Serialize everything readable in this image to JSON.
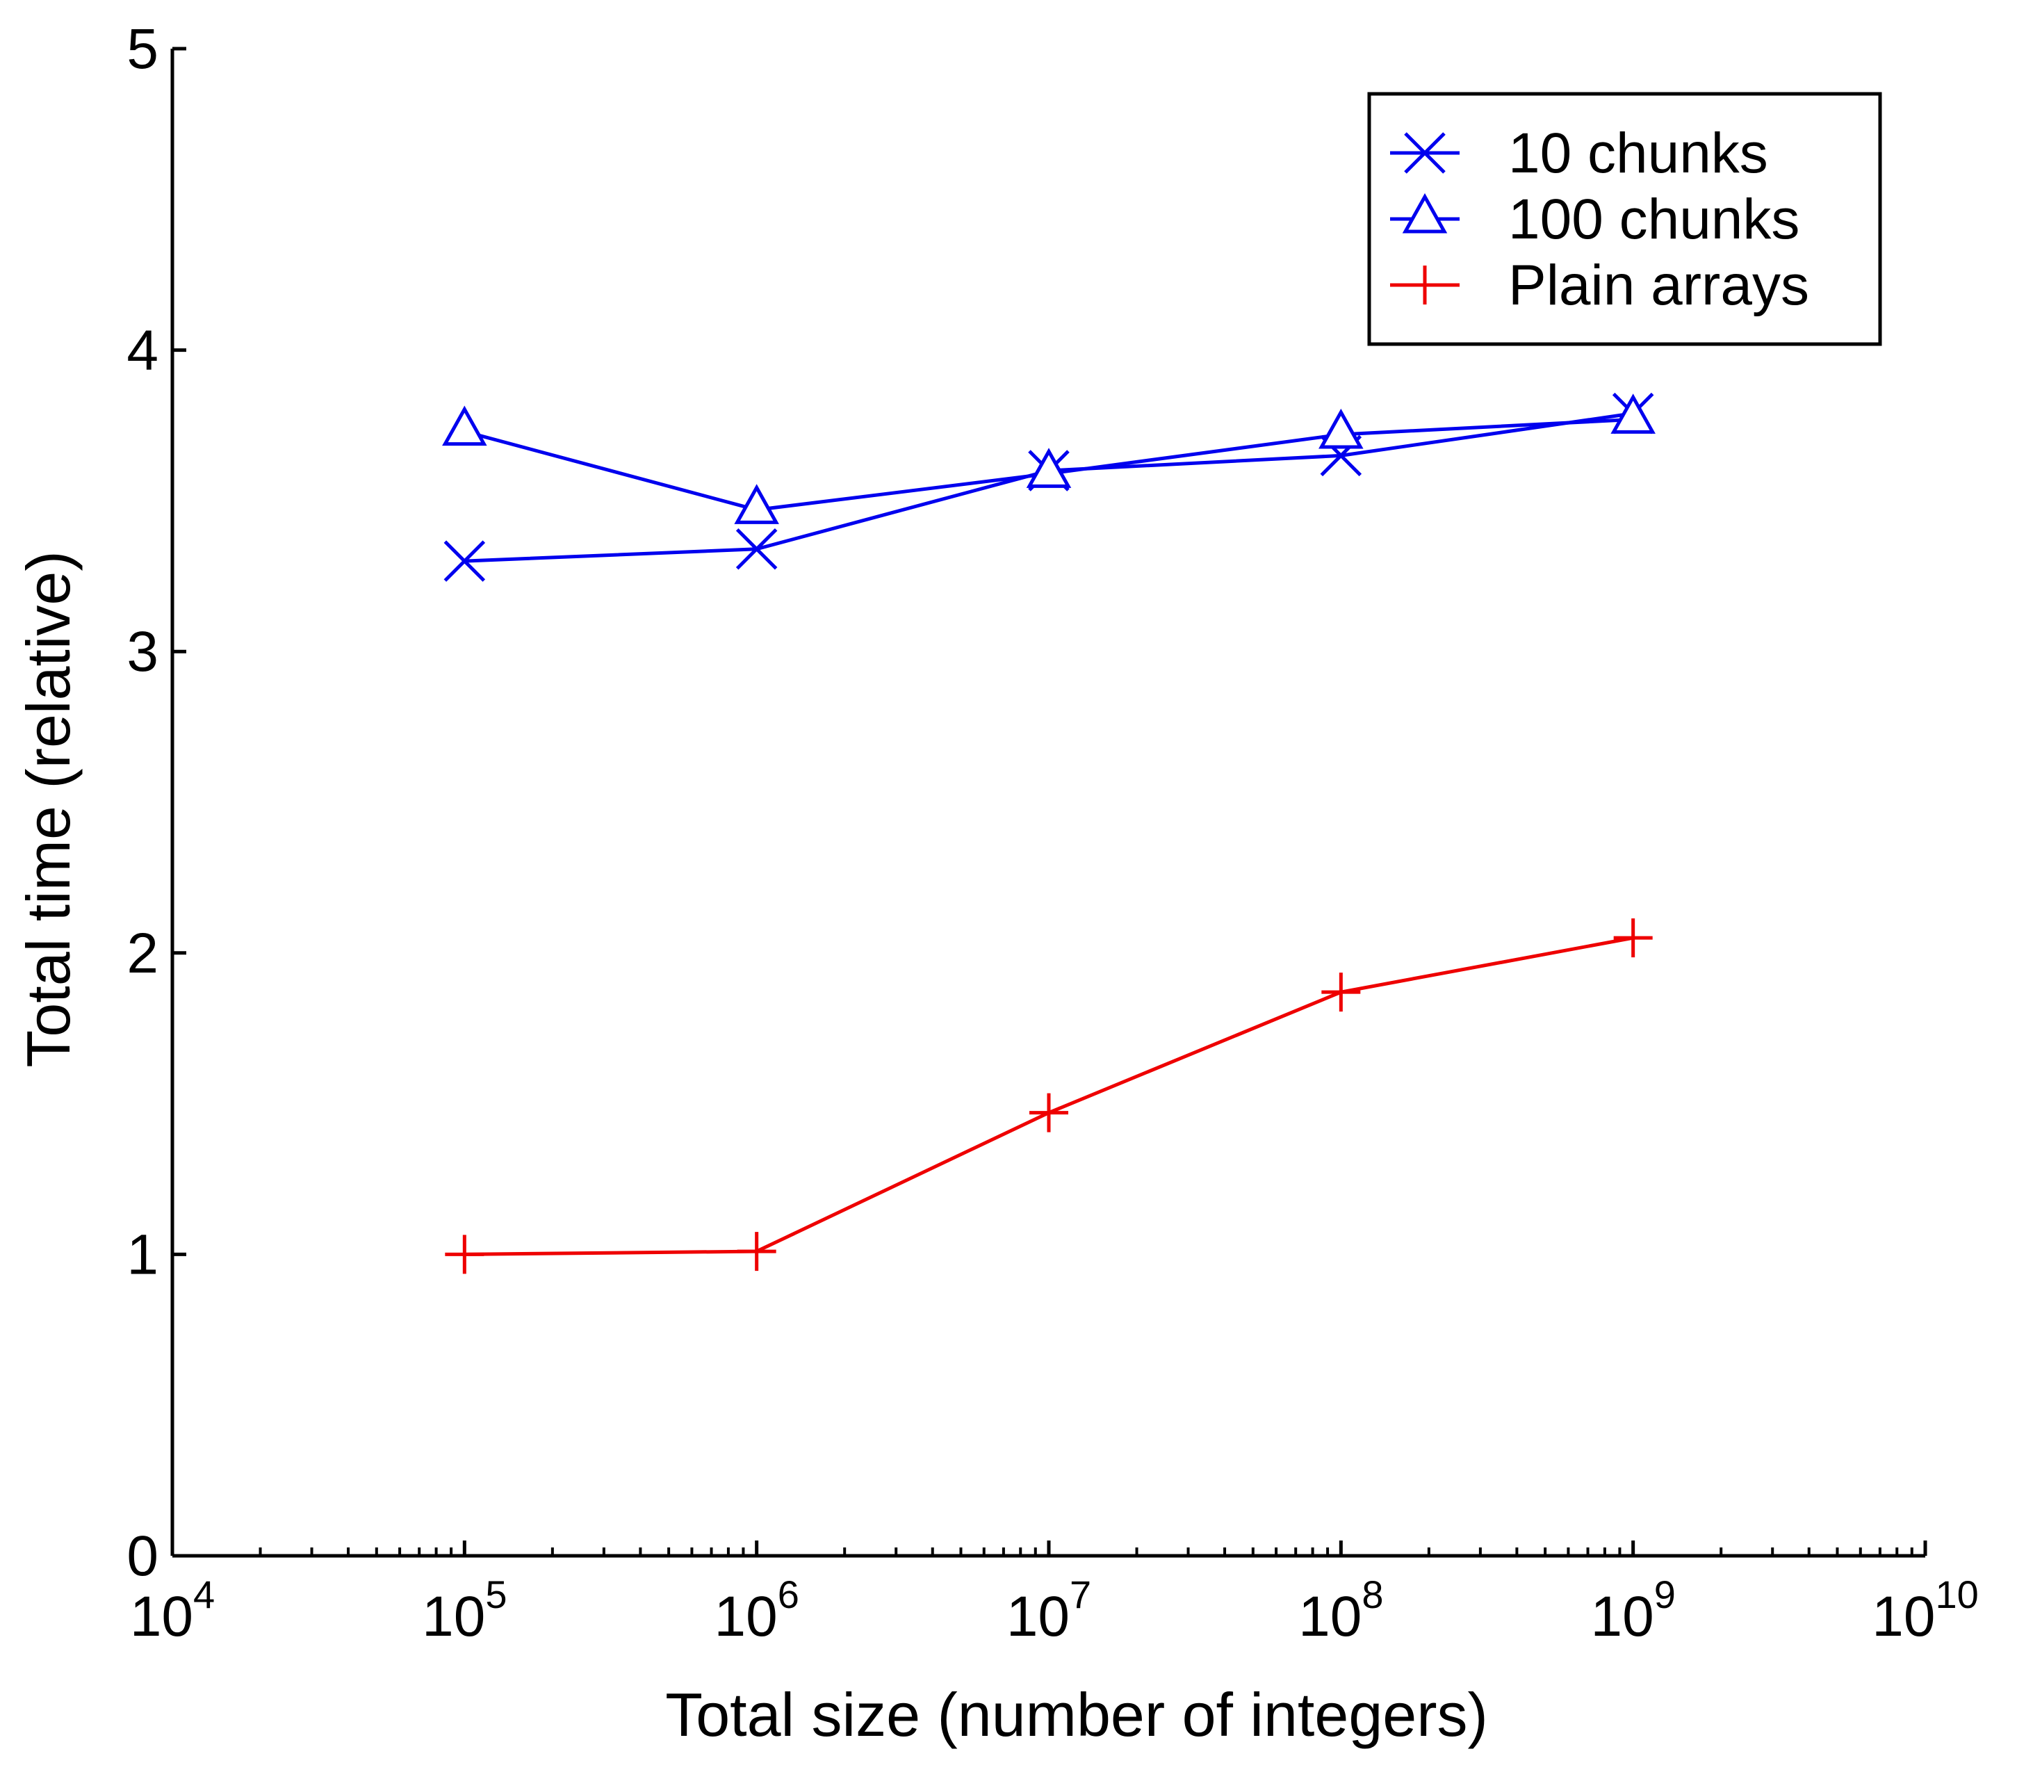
{
  "chart_data": {
    "type": "line",
    "title": "",
    "xlabel": "Total size (number of integers)",
    "ylabel": "Total time (relative)",
    "xscale": "log",
    "xlim": [
      10000,
      10000000000
    ],
    "ylim": [
      0,
      5
    ],
    "x_ticks": [
      {
        "base": "10",
        "exp": "4"
      },
      {
        "base": "10",
        "exp": "5"
      },
      {
        "base": "10",
        "exp": "6"
      },
      {
        "base": "10",
        "exp": "7"
      },
      {
        "base": "10",
        "exp": "8"
      },
      {
        "base": "10",
        "exp": "9"
      },
      {
        "base": "10",
        "exp": "10"
      }
    ],
    "y_ticks": [
      "0",
      "1",
      "2",
      "3",
      "4",
      "5"
    ],
    "grid": false,
    "legend_position": "top-right",
    "x": [
      100000,
      1000000,
      10000000,
      100000000,
      1000000000
    ],
    "series": [
      {
        "name": "10 chunks",
        "color": "#0000ee",
        "marker": "x",
        "values": [
          3.3,
          3.34,
          3.6,
          3.65,
          3.79
        ]
      },
      {
        "name": "100 chunks",
        "color": "#0000ee",
        "marker": "triangle",
        "values": [
          3.73,
          3.47,
          3.59,
          3.72,
          3.77
        ]
      },
      {
        "name": "Plain arrays",
        "color": "#ee0000",
        "marker": "plus",
        "values": [
          1.0,
          1.01,
          1.47,
          1.87,
          2.05
        ]
      }
    ]
  }
}
